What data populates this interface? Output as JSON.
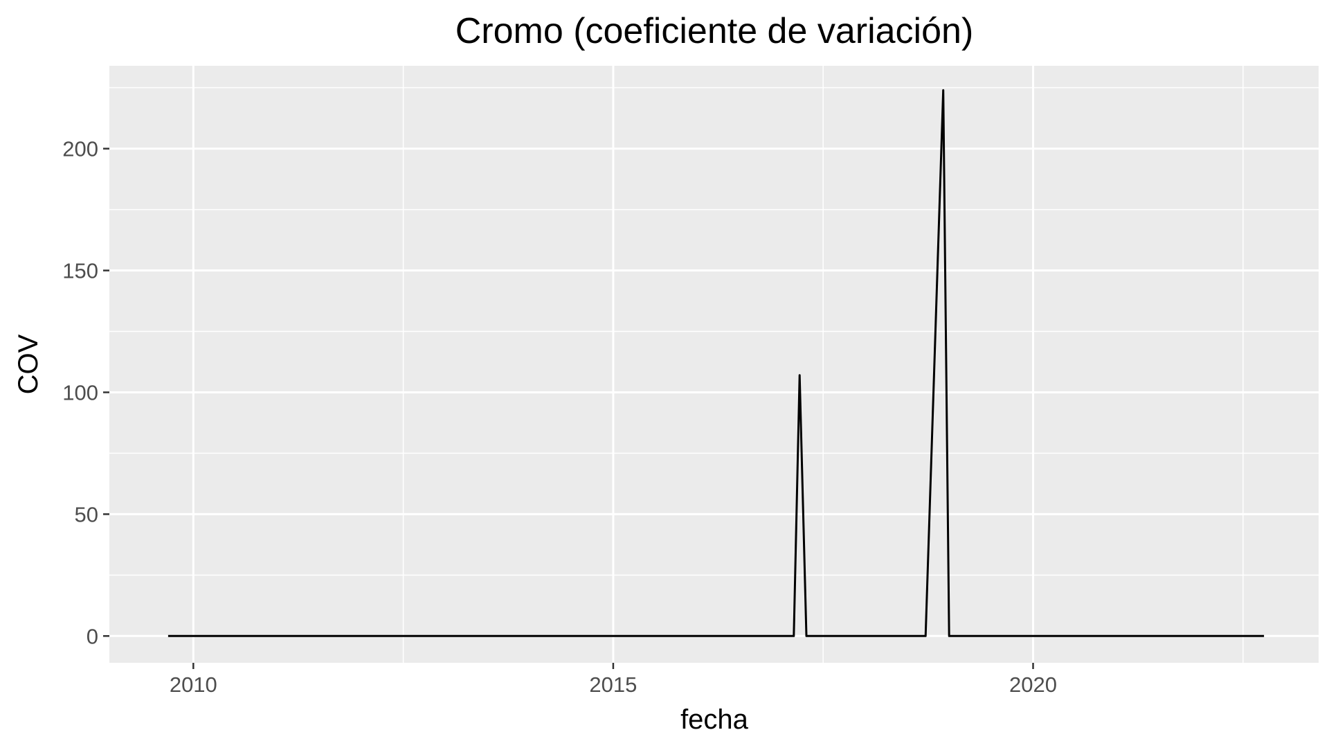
{
  "chart_data": {
    "type": "line",
    "title": "Cromo (coeficiente de variación)",
    "xlabel": "fecha",
    "ylabel": "COV",
    "x_ticks": [
      {
        "value": 2010,
        "label": "2010"
      },
      {
        "value": 2015,
        "label": "2015"
      },
      {
        "value": 2020,
        "label": "2020"
      }
    ],
    "y_ticks": [
      {
        "value": 0,
        "label": "0"
      },
      {
        "value": 50,
        "label": "50"
      },
      {
        "value": 100,
        "label": "100"
      },
      {
        "value": 150,
        "label": "150"
      },
      {
        "value": 200,
        "label": "200"
      }
    ],
    "xlim": [
      2009.0,
      2023.4
    ],
    "ylim": [
      -11,
      234
    ],
    "grid": true,
    "colors": {
      "panel": "#ebebeb",
      "grid": "#ffffff",
      "line": "#000000",
      "tick": "#333333"
    },
    "series": [
      {
        "x": [
          2009.7,
          2017.15,
          2017.22,
          2017.3,
          2018.72,
          2018.93,
          2019.0,
          2022.75
        ],
        "y": [
          0,
          0,
          107,
          0,
          0,
          224,
          0,
          0
        ]
      }
    ]
  }
}
